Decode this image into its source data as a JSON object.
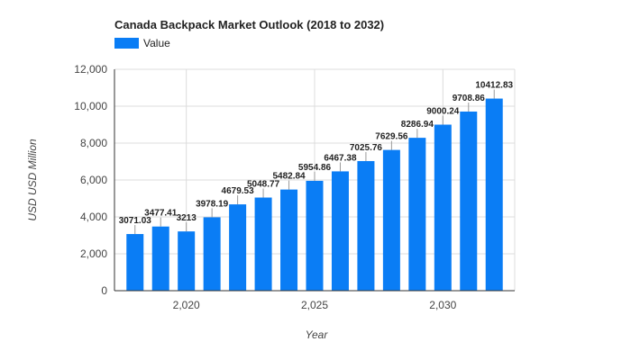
{
  "chart_data": {
    "type": "bar",
    "title": "Canada Backpack Market Outlook (2018 to 2032)",
    "xlabel": "Year",
    "ylabel": "USD USD Million",
    "legend": {
      "position": "top-left",
      "entries": [
        "Value"
      ]
    },
    "grid": true,
    "colors": {
      "bar": "#0a7df5",
      "grid": "#dcdcdc",
      "axis": "#333333"
    },
    "x": [
      2018,
      2019,
      2020,
      2021,
      2022,
      2023,
      2024,
      2025,
      2026,
      2027,
      2028,
      2029,
      2030,
      2031,
      2032
    ],
    "series": [
      {
        "name": "Value",
        "values": [
          3071.03,
          3477.41,
          3213,
          3978.19,
          4679.53,
          5048.77,
          5482.84,
          5954.86,
          6467.38,
          7025.76,
          7629.56,
          8286.94,
          9000.24,
          9708.86,
          10412.83
        ],
        "labels": [
          "3071.03",
          "3477.41",
          "3213",
          "3978.19",
          "4679.53",
          "5048.77",
          "5482.84",
          "5954.86",
          "6467.38",
          "7025.76",
          "7629.56",
          "8286.94",
          "9000.24",
          "9708.86",
          "10412.83"
        ]
      }
    ],
    "ylim": [
      0,
      12000
    ],
    "yticks": [
      0,
      2000,
      4000,
      6000,
      8000,
      10000,
      12000
    ],
    "ytick_labels": [
      "0",
      "2,000",
      "4,000",
      "6,000",
      "8,000",
      "10,000",
      "12,000"
    ],
    "xlim": [
      2017.2,
      2032.8
    ],
    "xticks": [
      2020,
      2025,
      2030
    ],
    "xtick_labels": [
      "2,020",
      "2,025",
      "2,030"
    ]
  }
}
